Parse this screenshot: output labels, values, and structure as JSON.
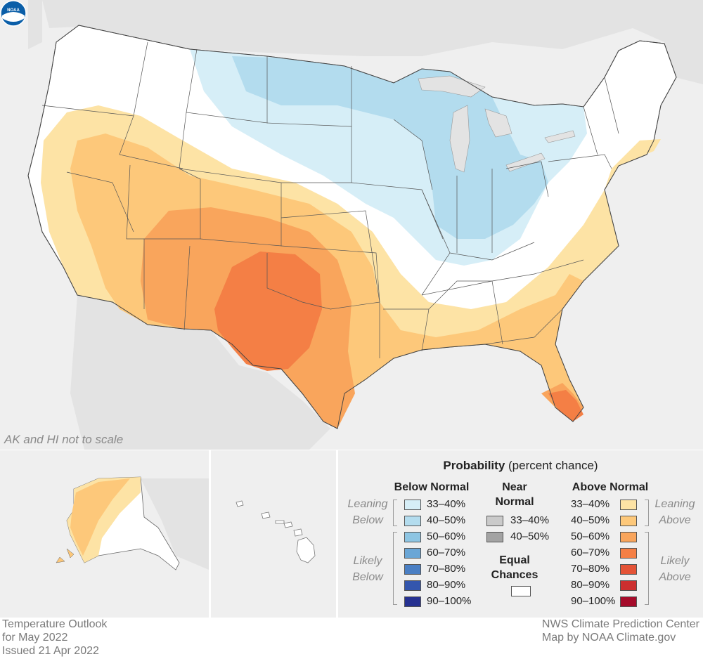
{
  "map": {
    "scale_note": "AK and HI not to scale",
    "logo_text": "NOAA"
  },
  "legend": {
    "title_bold": "Probability",
    "title_rest": " (percent chance)",
    "below_normal": {
      "heading": "Below Normal",
      "leaning_label": "Leaning Below",
      "likely_label": "Likely Below",
      "rows": [
        {
          "label": "33–40%",
          "color": "#d6eef7"
        },
        {
          "label": "40–50%",
          "color": "#b3dcee"
        },
        {
          "label": "50–60%",
          "color": "#8dc5e3"
        },
        {
          "label": "60–70%",
          "color": "#6aa6d6"
        },
        {
          "label": "70–80%",
          "color": "#4a7fc4"
        },
        {
          "label": "80–90%",
          "color": "#3456ad"
        },
        {
          "label": "90–100%",
          "color": "#263191"
        }
      ]
    },
    "near_normal": {
      "heading_line1": "Near",
      "heading_line2": "Normal",
      "rows": [
        {
          "label": "33–40%",
          "color": "#cacaca"
        },
        {
          "label": "40–50%",
          "color": "#a3a3a3"
        }
      ]
    },
    "equal_chances": {
      "heading_line1": "Equal",
      "heading_line2": "Chances",
      "color": "#ffffff"
    },
    "above_normal": {
      "heading": "Above Normal",
      "leaning_label": "Leaning Above",
      "likely_label": "Likely Above",
      "rows": [
        {
          "label": "33–40%",
          "color": "#fde3a5"
        },
        {
          "label": "40–50%",
          "color": "#fdc87a"
        },
        {
          "label": "50–60%",
          "color": "#f9a55c"
        },
        {
          "label": "60–70%",
          "color": "#f47f45"
        },
        {
          "label": "70–80%",
          "color": "#e45336"
        },
        {
          "label": "80–90%",
          "color": "#cc2f2f"
        },
        {
          "label": "90–100%",
          "color": "#a50b2a"
        }
      ]
    }
  },
  "footer": {
    "line1": "Temperature Outlook",
    "line2": "for May 2022",
    "line3": "Issued 21 Apr 2022",
    "credit1": "NWS Climate Prediction Center",
    "credit2": "Map by NOAA Climate.gov"
  }
}
